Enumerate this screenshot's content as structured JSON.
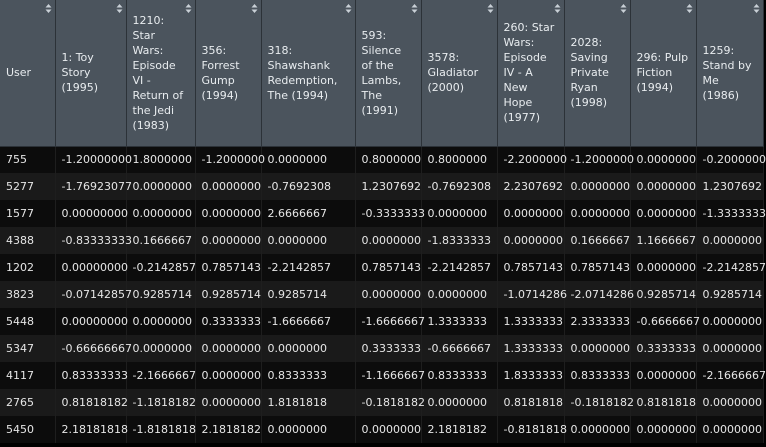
{
  "columns": [
    {
      "label": "User"
    },
    {
      "label": "1: Toy Story (1995)"
    },
    {
      "label": "1210: Star Wars: Episode VI - Return of the Jedi (1983)"
    },
    {
      "label": "356: Forrest Gump (1994)"
    },
    {
      "label": "318: Shawshank Redemption, The (1994)"
    },
    {
      "label": "593: Silence of the Lambs, The (1991)"
    },
    {
      "label": "3578: Gladiator (2000)"
    },
    {
      "label": "260: Star Wars: Episode IV - A New Hope (1977)"
    },
    {
      "label": "2028: Saving Private Ryan (1998)"
    },
    {
      "label": "296: Pulp Fiction (1994)"
    },
    {
      "label": "1259: Stand by Me (1986)"
    }
  ],
  "rows": [
    [
      "755",
      "-1.20000000",
      "1.8000000",
      "-1.2000000",
      "0.0000000",
      "0.8000000",
      "0.8000000",
      "-2.2000000",
      "-1.2000000",
      "0.0000000",
      "-0.2000000"
    ],
    [
      "5277",
      "-1.76923077",
      "0.0000000",
      "0.0000000",
      "-0.7692308",
      "1.2307692",
      "-0.7692308",
      "2.2307692",
      "0.0000000",
      "0.0000000",
      "1.2307692"
    ],
    [
      "1577",
      "0.00000000",
      "0.0000000",
      "0.0000000",
      "2.6666667",
      "-0.3333333",
      "0.0000000",
      "0.0000000",
      "0.0000000",
      "0.0000000",
      "-1.3333333"
    ],
    [
      "4388",
      "-0.83333333",
      "0.1666667",
      "0.0000000",
      "0.0000000",
      "0.0000000",
      "-1.8333333",
      "0.0000000",
      "0.1666667",
      "1.1666667",
      "0.0000000"
    ],
    [
      "1202",
      "0.00000000",
      "-0.2142857",
      "0.7857143",
      "-2.2142857",
      "0.7857143",
      "-2.2142857",
      "0.7857143",
      "0.7857143",
      "0.0000000",
      "-2.2142857"
    ],
    [
      "3823",
      "-0.07142857",
      "0.9285714",
      "0.9285714",
      "0.9285714",
      "0.0000000",
      "0.0000000",
      "-1.0714286",
      "-2.0714286",
      "0.9285714",
      "0.9285714"
    ],
    [
      "5448",
      "0.00000000",
      "0.0000000",
      "0.3333333",
      "-1.6666667",
      "-1.6666667",
      "1.3333333",
      "1.3333333",
      "2.3333333",
      "-0.6666667",
      "0.0000000"
    ],
    [
      "5347",
      "-0.66666667",
      "0.0000000",
      "0.0000000",
      "0.0000000",
      "0.3333333",
      "-0.6666667",
      "1.3333333",
      "0.0000000",
      "0.3333333",
      "0.0000000"
    ],
    [
      "4117",
      "0.83333333",
      "-2.1666667",
      "0.0000000",
      "0.8333333",
      "-1.1666667",
      "0.8333333",
      "1.8333333",
      "0.8333333",
      "0.0000000",
      "-2.1666667"
    ],
    [
      "2765",
      "0.81818182",
      "-1.1818182",
      "0.0000000",
      "1.8181818",
      "-0.1818182",
      "0.0000000",
      "0.8181818",
      "-0.1818182",
      "0.8181818",
      "0.0000000"
    ],
    [
      "5450",
      "2.18181818",
      "-1.8181818",
      "2.1818182",
      "0.0000000",
      "0.0000000",
      "2.1818182",
      "-0.8181818",
      "0.0000000",
      "0.0000000",
      "0.0000000"
    ]
  ]
}
